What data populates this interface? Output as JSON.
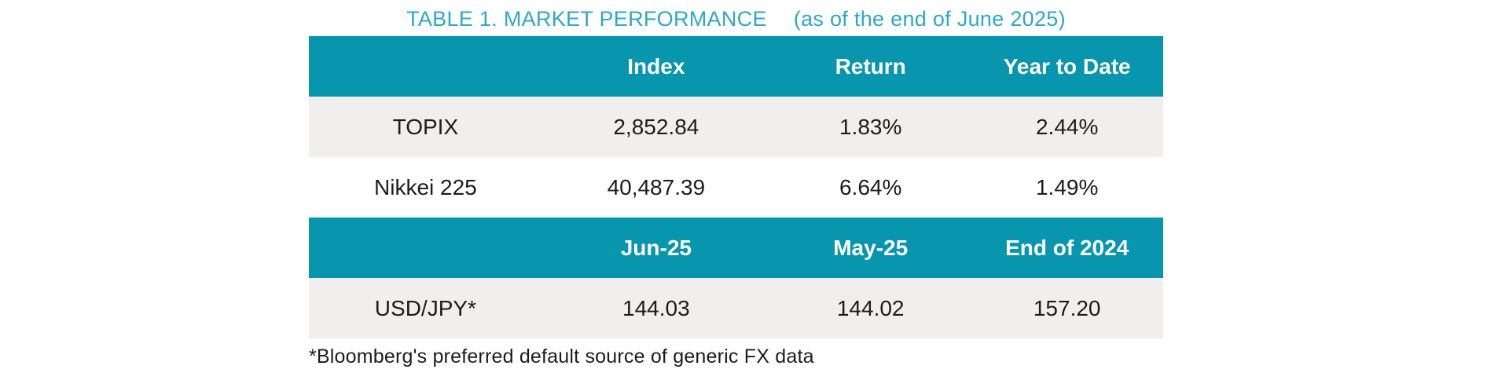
{
  "title": {
    "main": "TABLE 1. MARKET PERFORMANCE",
    "suffix": "(as of the end of June 2025)"
  },
  "colors": {
    "header_bg": "#0796ae",
    "title_text": "#2ea7c9",
    "row_alt_bg": "#f0efee",
    "body_text": "#1c1c1c"
  },
  "table1": {
    "headers": [
      "",
      "Index",
      "Return",
      "Year to Date"
    ],
    "rows": [
      {
        "label": "TOPIX",
        "values": [
          "2,852.84",
          "1.83%",
          "2.44%"
        ]
      },
      {
        "label": "Nikkei 225",
        "values": [
          "40,487.39",
          "6.64%",
          "1.49%"
        ]
      }
    ]
  },
  "table2": {
    "headers": [
      "",
      "Jun-25",
      "May-25",
      "End of 2024"
    ],
    "rows": [
      {
        "label": "USD/JPY*",
        "values": [
          "144.03",
          "144.02",
          "157.20"
        ]
      }
    ]
  },
  "footnote": "*Bloomberg's preferred default source of generic FX data"
}
